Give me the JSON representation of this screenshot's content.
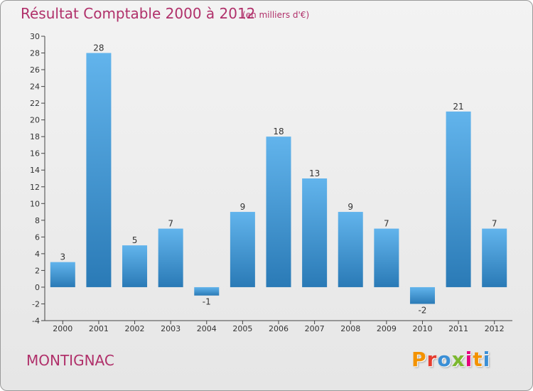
{
  "header": {
    "title": "Résultat Comptable 2000 à 2012",
    "subtitle": "(en milliers d'€)"
  },
  "footer": {
    "commune": "MONTIGNAC",
    "logo_letters": [
      "P",
      "r",
      "o",
      "x",
      "i",
      "t",
      "i"
    ]
  },
  "colors": {
    "title": "#b0306a",
    "bar_top": "#62b4ec",
    "bar_bottom": "#2a7ab6",
    "logo": [
      "#f39200",
      "#e53d2f",
      "#3a8fd6",
      "#7cb82f",
      "#e6007e",
      "#f39200",
      "#3a8fd6"
    ]
  },
  "chart_data": {
    "type": "bar",
    "title": "Résultat Comptable 2000 à 2012",
    "subtitle": "(en milliers d'€)",
    "xlabel": "",
    "ylabel": "",
    "categories": [
      "2000",
      "2001",
      "2002",
      "2003",
      "2004",
      "2005",
      "2006",
      "2007",
      "2008",
      "2009",
      "2010",
      "2011",
      "2012"
    ],
    "values": [
      3,
      28,
      5,
      7,
      -1,
      9,
      18,
      13,
      9,
      7,
      -2,
      21,
      7
    ],
    "ylim": [
      -4,
      30
    ],
    "yticks": [
      "-4",
      "-2",
      "0",
      "2",
      "4",
      "6",
      "8",
      "10",
      "12",
      "14",
      "16",
      "18",
      "20",
      "22",
      "24",
      "26",
      "28",
      "30"
    ],
    "grid": false,
    "legend": "none"
  }
}
